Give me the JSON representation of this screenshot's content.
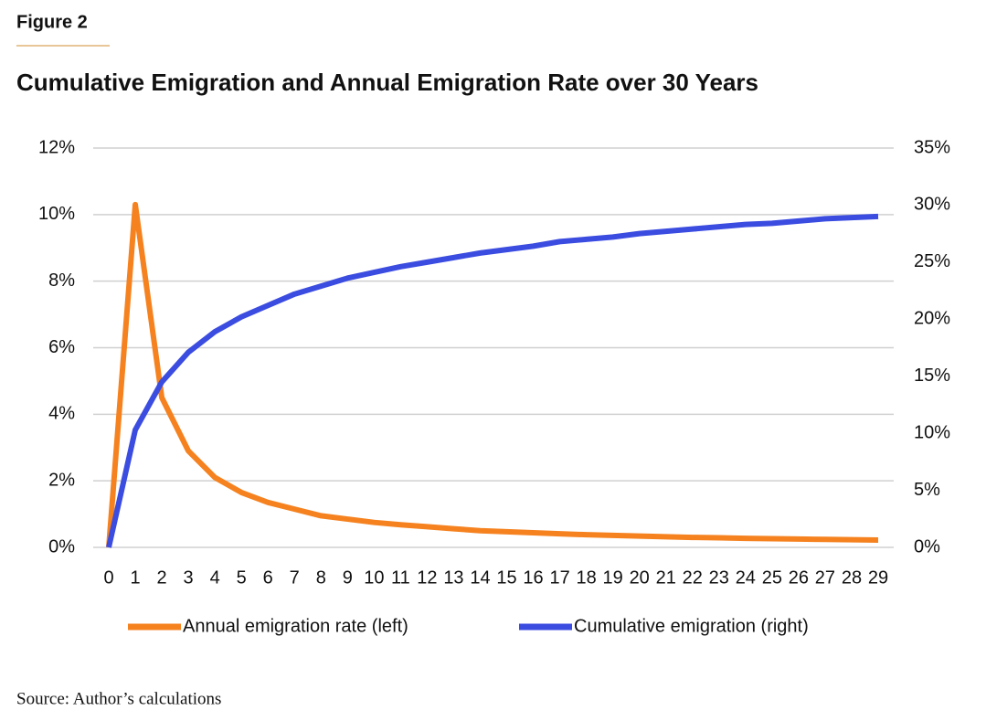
{
  "chart_data": {
    "type": "line",
    "label": "Figure 2",
    "title": "Cumulative Emigration and Annual Emigration Rate over 30 Years",
    "source": "Source: Author’s calculations",
    "x": [
      0,
      1,
      2,
      3,
      4,
      5,
      6,
      7,
      8,
      9,
      10,
      11,
      12,
      13,
      14,
      15,
      16,
      17,
      18,
      19,
      20,
      21,
      22,
      23,
      24,
      25,
      26,
      27,
      28,
      29
    ],
    "xlim": [
      0,
      29
    ],
    "xticks": [
      0,
      1,
      2,
      3,
      4,
      5,
      6,
      7,
      8,
      9,
      10,
      11,
      12,
      13,
      14,
      15,
      16,
      17,
      18,
      19,
      20,
      21,
      22,
      23,
      24,
      25,
      26,
      27,
      28,
      29
    ],
    "series": [
      {
        "name": "Annual emigration rate (left)",
        "color": "#f5821f",
        "axis": "y",
        "values": [
          0,
          10.3,
          4.5,
          2.9,
          2.1,
          1.65,
          1.35,
          1.15,
          0.95,
          0.85,
          0.75,
          0.68,
          0.62,
          0.56,
          0.5,
          0.47,
          0.44,
          0.41,
          0.38,
          0.36,
          0.34,
          0.32,
          0.3,
          0.29,
          0.27,
          0.26,
          0.25,
          0.24,
          0.23,
          0.22
        ]
      },
      {
        "name": "Cumulative emigration (right)",
        "color": "#3b4ce0",
        "axis": "y2",
        "values": [
          0,
          10.3,
          14.5,
          17.1,
          18.9,
          20.2,
          21.2,
          22.2,
          22.9,
          23.6,
          24.1,
          24.6,
          25.0,
          25.4,
          25.8,
          26.1,
          26.4,
          26.8,
          27.0,
          27.2,
          27.5,
          27.7,
          27.9,
          28.1,
          28.3,
          28.4,
          28.6,
          28.8,
          28.9,
          29.0
        ]
      }
    ],
    "ylim": [
      0,
      12
    ],
    "yticks": [
      {
        "value": 0,
        "label": "0%"
      },
      {
        "value": 2,
        "label": "2%"
      },
      {
        "value": 4,
        "label": "4%"
      },
      {
        "value": 6,
        "label": "6%"
      },
      {
        "value": 8,
        "label": "8%"
      },
      {
        "value": 10,
        "label": "10%"
      },
      {
        "value": 12,
        "label": "12%"
      }
    ],
    "y2lim": [
      0,
      35
    ],
    "y2ticks": [
      {
        "value": 0,
        "label": "0%"
      },
      {
        "value": 5,
        "label": "5%"
      },
      {
        "value": 10,
        "label": "10%"
      },
      {
        "value": 15,
        "label": "15%"
      },
      {
        "value": 20,
        "label": "20%"
      },
      {
        "value": 25,
        "label": "25%"
      },
      {
        "value": 30,
        "label": "30%"
      },
      {
        "value": 35,
        "label": "35%"
      }
    ],
    "grid": true,
    "legend": "bottom"
  }
}
